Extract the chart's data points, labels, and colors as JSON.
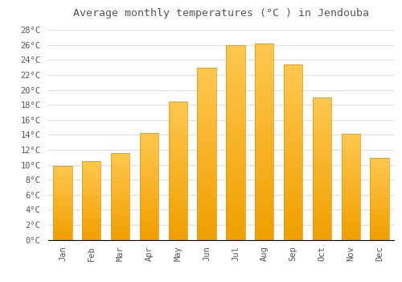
{
  "title": "Average monthly temperatures (°C ) in Jendouba",
  "months": [
    "Jan",
    "Feb",
    "Mar",
    "Apr",
    "May",
    "Jun",
    "Jul",
    "Aug",
    "Sep",
    "Oct",
    "Nov",
    "Dec"
  ],
  "values": [
    9.8,
    10.5,
    11.6,
    14.3,
    18.5,
    23.0,
    26.0,
    26.2,
    23.4,
    19.0,
    14.2,
    10.9
  ],
  "bar_color_top": "#FFC04C",
  "bar_color_bottom": "#F0A000",
  "bar_edge_color": "#E09000",
  "background_color": "#FFFFFF",
  "grid_color": "#DDDDDD",
  "text_color": "#555555",
  "ylim": [
    0,
    29
  ],
  "yticks": [
    0,
    2,
    4,
    6,
    8,
    10,
    12,
    14,
    16,
    18,
    20,
    22,
    24,
    26,
    28
  ],
  "title_fontsize": 9.5,
  "tick_fontsize": 7.5,
  "bar_width": 0.65
}
